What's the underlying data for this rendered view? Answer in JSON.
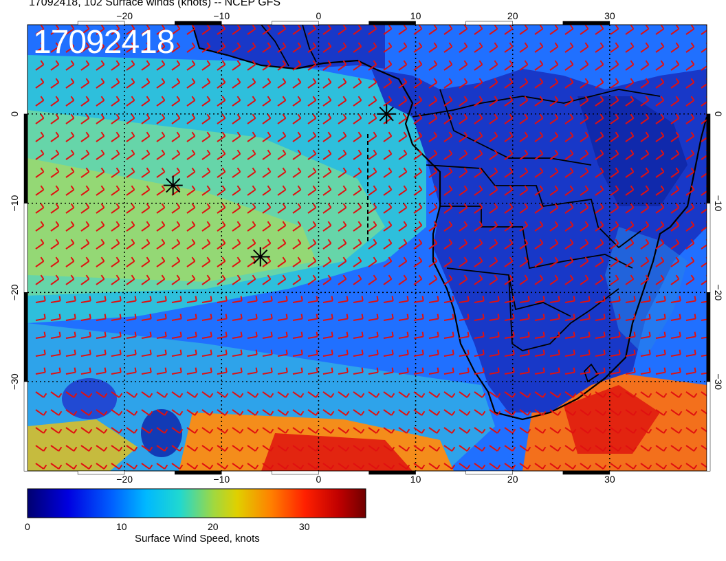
{
  "title": "17092418, 102 Surface winds (knots) -- NCEP GFS",
  "date_stamp": "17092418",
  "map": {
    "lon_range": [
      -30,
      40
    ],
    "lat_range": [
      -40,
      10
    ],
    "lon_ticks": [
      -20,
      -10,
      0,
      10,
      20,
      30
    ],
    "lon_tick_labels": [
      "−20",
      "−10",
      "0",
      "10",
      "20",
      "30"
    ],
    "lat_ticks": [
      0,
      -10,
      -20,
      -30
    ],
    "lat_tick_labels": [
      "0",
      "−10",
      "−20",
      "−30"
    ],
    "gridlines": "dotted",
    "barb_color": "#e01010",
    "coastline_color": "#000000",
    "markers": [
      {
        "name": "asterisk",
        "lon": -15,
        "lat": -8
      },
      {
        "name": "asterisk",
        "lon": -6,
        "lat": -16
      },
      {
        "name": "asterisk",
        "lon": 7,
        "lat": 0
      }
    ]
  },
  "colorbar": {
    "title": "Surface Wind Speed, knots",
    "ticks": [
      0,
      10,
      20,
      30
    ],
    "tick_labels": [
      "0",
      "10",
      "20",
      "30"
    ],
    "range": [
      0,
      37
    ],
    "colors": [
      "#000080",
      "#0000d0",
      "#0050ff",
      "#00a8ff",
      "#00d0d0",
      "#40d0a0",
      "#a0d040",
      "#e0d000",
      "#ff8000",
      "#ff2000",
      "#c00000",
      "#800000"
    ]
  }
}
